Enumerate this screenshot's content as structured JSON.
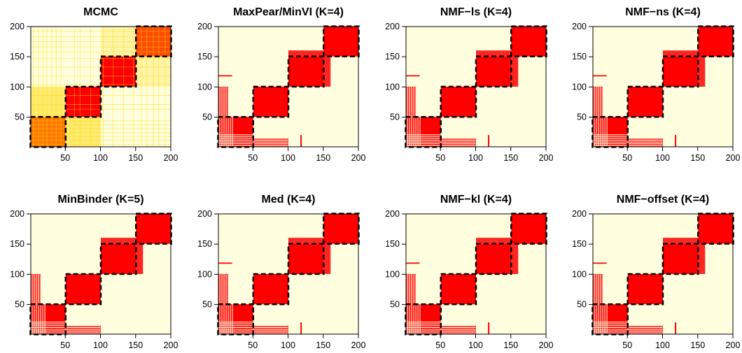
{
  "chart_data": [
    {
      "type": "heatmap",
      "title": "MCMC",
      "xlim": [
        1,
        200
      ],
      "ylim": [
        1,
        200
      ],
      "x_ticks": [
        "50",
        "100",
        "150",
        "200"
      ],
      "y_ticks": [
        "50",
        "100",
        "150",
        "200"
      ],
      "colors": {
        "background": "#FFFFE0",
        "high": "#FF0000",
        "mid": "#FFD700"
      },
      "blocks": [
        [
          1,
          50
        ],
        [
          51,
          100
        ],
        [
          101,
          150
        ],
        [
          151,
          200
        ]
      ],
      "partial": true
    },
    {
      "type": "heatmap",
      "title": "MaxPear/MinVI (K=4)",
      "xlim": [
        1,
        200
      ],
      "ylim": [
        1,
        200
      ],
      "x_ticks": [
        "50",
        "100",
        "150",
        "200"
      ],
      "y_ticks": [
        "50",
        "100",
        "150",
        "200"
      ],
      "colors": {
        "background": "#FFFFE0",
        "high": "#FF0000"
      },
      "blocks": [
        [
          1,
          50
        ],
        [
          51,
          100
        ],
        [
          101,
          150
        ],
        [
          151,
          200
        ]
      ]
    },
    {
      "type": "heatmap",
      "title": "NMF−ls (K=4)",
      "xlim": [
        1,
        200
      ],
      "ylim": [
        1,
        200
      ],
      "x_ticks": [
        "50",
        "100",
        "150",
        "200"
      ],
      "y_ticks": [
        "50",
        "100",
        "150",
        "200"
      ],
      "colors": {
        "background": "#FFFFE0",
        "high": "#FF0000"
      },
      "blocks": [
        [
          1,
          50
        ],
        [
          51,
          100
        ],
        [
          101,
          150
        ],
        [
          151,
          200
        ]
      ]
    },
    {
      "type": "heatmap",
      "title": "NMF−ns (K=4)",
      "xlim": [
        1,
        200
      ],
      "ylim": [
        1,
        200
      ],
      "x_ticks": [
        "50",
        "100",
        "150",
        "200"
      ],
      "y_ticks": [
        "50",
        "100",
        "150",
        "200"
      ],
      "colors": {
        "background": "#FFFFE0",
        "high": "#FF0000"
      },
      "blocks": [
        [
          1,
          50
        ],
        [
          51,
          100
        ],
        [
          101,
          150
        ],
        [
          151,
          200
        ]
      ]
    },
    {
      "type": "heatmap",
      "title": "MinBinder (K=5)",
      "xlim": [
        1,
        200
      ],
      "ylim": [
        1,
        200
      ],
      "x_ticks": [
        "50",
        "100",
        "150",
        "200"
      ],
      "y_ticks": [
        "50",
        "100",
        "150",
        "200"
      ],
      "colors": {
        "background": "#FFFFE0",
        "high": "#FF0000"
      },
      "blocks": [
        [
          1,
          50
        ],
        [
          51,
          100
        ],
        [
          101,
          150
        ],
        [
          151,
          200
        ]
      ]
    },
    {
      "type": "heatmap",
      "title": "Med (K=4)",
      "xlim": [
        1,
        200
      ],
      "ylim": [
        1,
        200
      ],
      "x_ticks": [
        "50",
        "100",
        "150",
        "200"
      ],
      "y_ticks": [
        "50",
        "100",
        "150",
        "200"
      ],
      "colors": {
        "background": "#FFFFE0",
        "high": "#FF0000"
      },
      "blocks": [
        [
          1,
          50
        ],
        [
          51,
          100
        ],
        [
          101,
          150
        ],
        [
          151,
          200
        ]
      ]
    },
    {
      "type": "heatmap",
      "title": "NMF−kl (K=4)",
      "xlim": [
        1,
        200
      ],
      "ylim": [
        1,
        200
      ],
      "x_ticks": [
        "50",
        "100",
        "150",
        "200"
      ],
      "y_ticks": [
        "50",
        "100",
        "150",
        "200"
      ],
      "colors": {
        "background": "#FFFFE0",
        "high": "#FF0000"
      },
      "blocks": [
        [
          1,
          50
        ],
        [
          51,
          100
        ],
        [
          101,
          150
        ],
        [
          151,
          200
        ]
      ]
    },
    {
      "type": "heatmap",
      "title": "NMF−offset (K=4)",
      "xlim": [
        1,
        200
      ],
      "ylim": [
        1,
        200
      ],
      "x_ticks": [
        "50",
        "100",
        "150",
        "200"
      ],
      "y_ticks": [
        "50",
        "100",
        "150",
        "200"
      ],
      "colors": {
        "background": "#FFFFE0",
        "high": "#FF0000"
      },
      "blocks": [
        [
          1,
          50
        ],
        [
          51,
          100
        ],
        [
          101,
          150
        ],
        [
          151,
          200
        ]
      ]
    }
  ]
}
